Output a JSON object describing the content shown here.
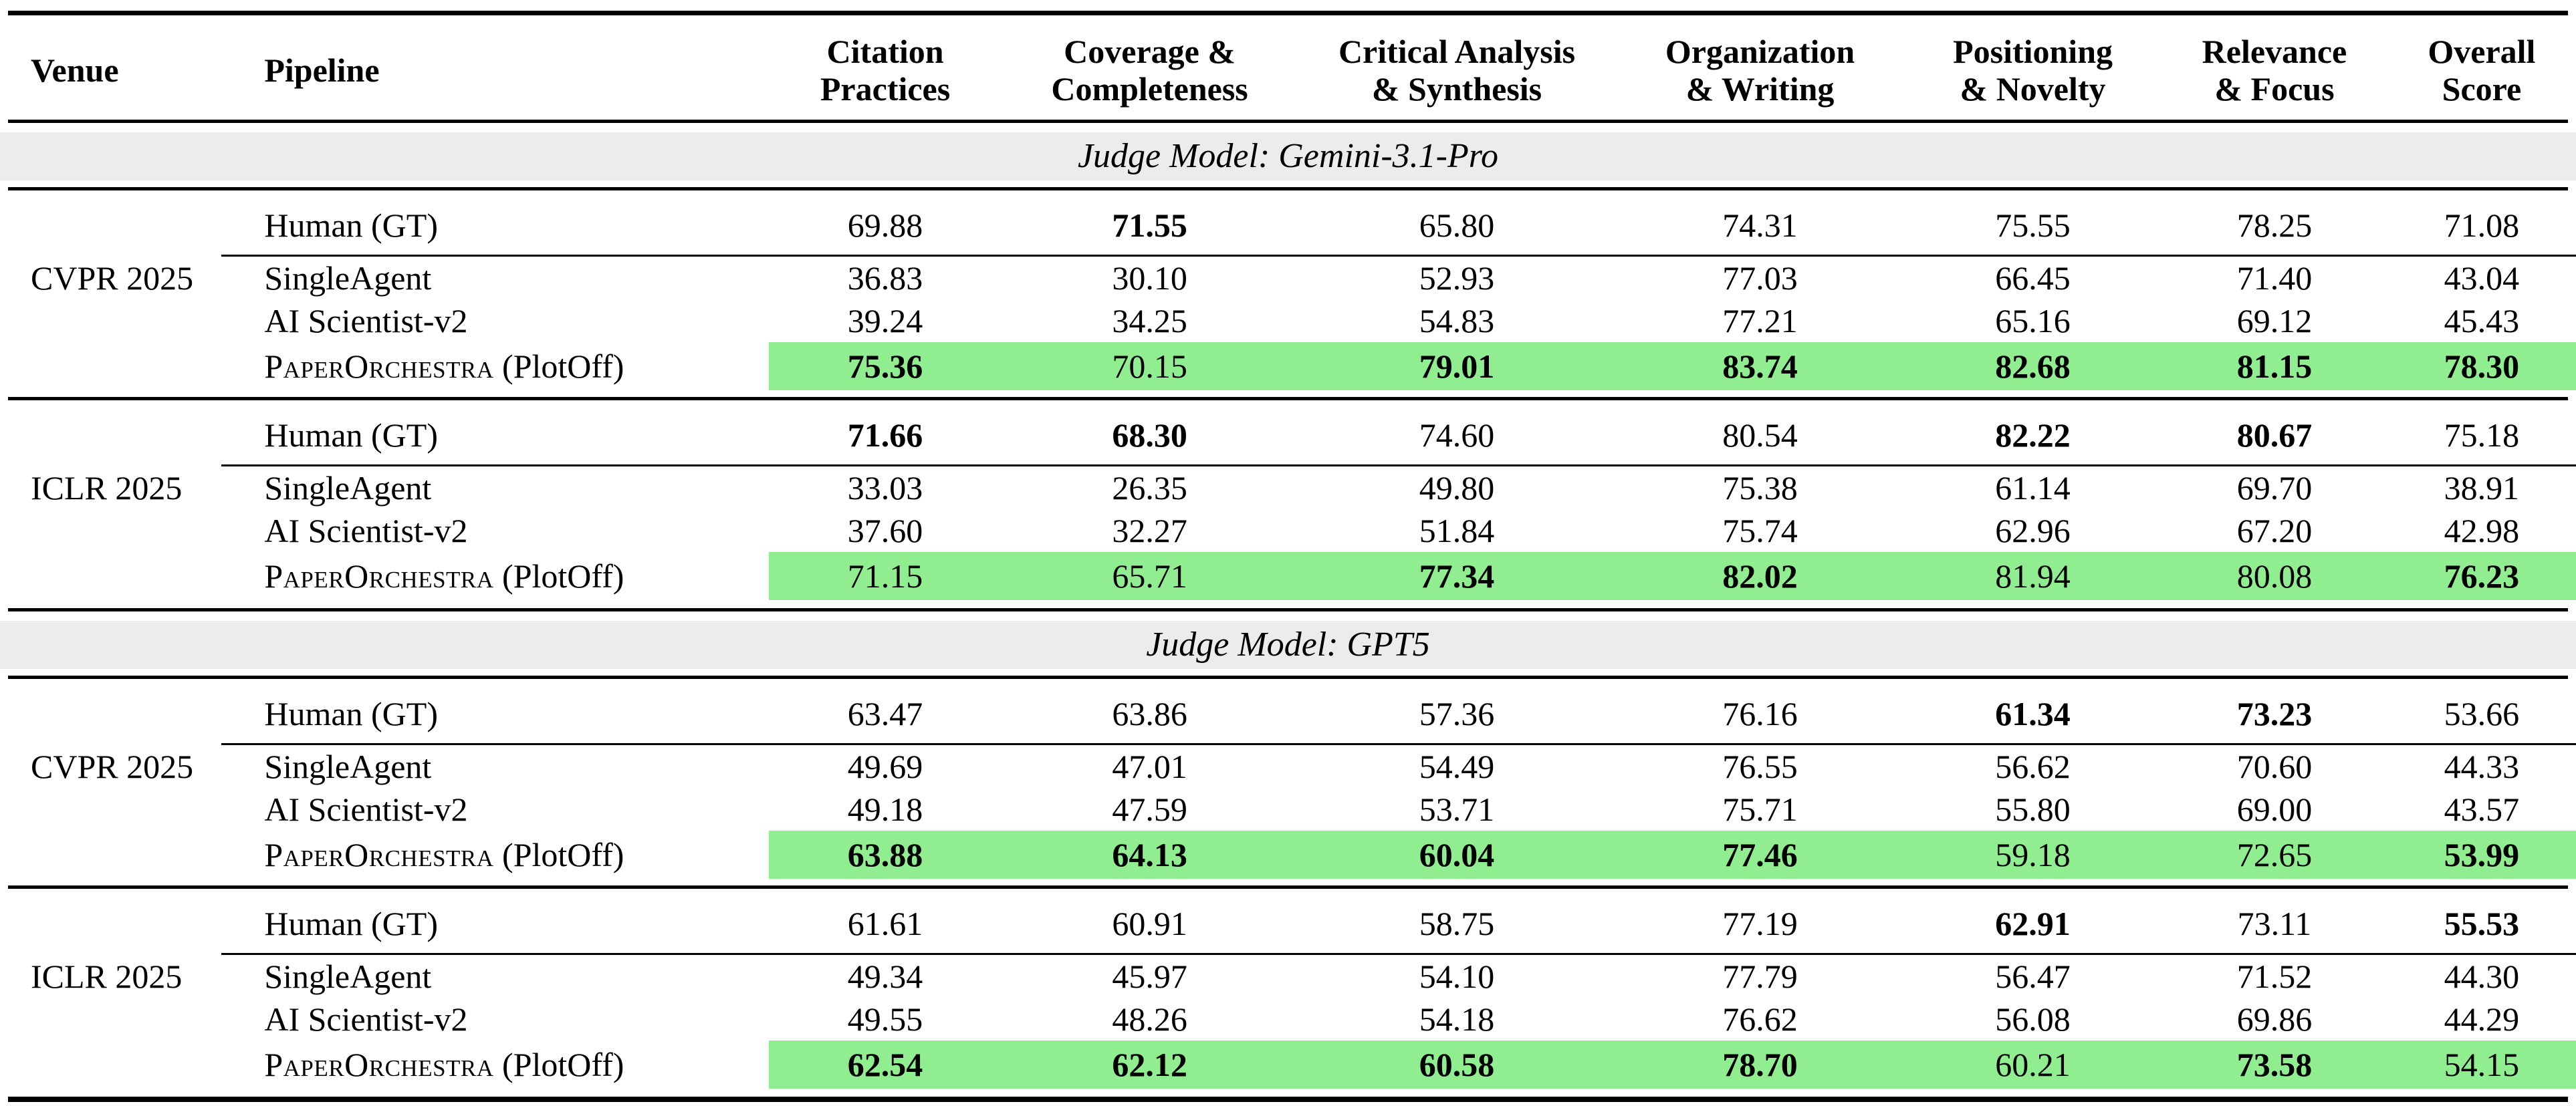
{
  "table": {
    "highlight_color": "#90EE90",
    "band_color": "#ECECEC",
    "columns": [
      {
        "label": "Venue"
      },
      {
        "label": "Pipeline"
      },
      {
        "line1": "Citation",
        "line2": "Practices"
      },
      {
        "line1": "Coverage &",
        "line2": "Completeness"
      },
      {
        "line1": "Critical Analysis",
        "line2": "& Synthesis"
      },
      {
        "line1": "Organization",
        "line2": "& Writing"
      },
      {
        "line1": "Positioning",
        "line2": "& Novelty"
      },
      {
        "line1": "Relevance",
        "line2": "& Focus"
      },
      {
        "line1": "Overall",
        "line2": "Score"
      }
    ],
    "sections": [
      {
        "judge_label": "Judge Model: Gemini-3.1-Pro",
        "blocks": [
          {
            "venue": "CVPR 2025",
            "rows": [
              {
                "pipeline": "Human (GT)",
                "pipeline_suffix": "",
                "smallcaps": false,
                "highlight": false,
                "values": [
                  "69.88",
                  "71.55",
                  "65.80",
                  "74.31",
                  "75.55",
                  "78.25",
                  "71.08"
                ],
                "bold": [
                  false,
                  true,
                  false,
                  false,
                  false,
                  false,
                  false
                ]
              },
              {
                "pipeline": "SingleAgent",
                "pipeline_suffix": "",
                "smallcaps": false,
                "highlight": false,
                "values": [
                  "36.83",
                  "30.10",
                  "52.93",
                  "77.03",
                  "66.45",
                  "71.40",
                  "43.04"
                ],
                "bold": [
                  false,
                  false,
                  false,
                  false,
                  false,
                  false,
                  false
                ]
              },
              {
                "pipeline": "AI Scientist-v2",
                "pipeline_suffix": "",
                "smallcaps": false,
                "highlight": false,
                "values": [
                  "39.24",
                  "34.25",
                  "54.83",
                  "77.21",
                  "65.16",
                  "69.12",
                  "45.43"
                ],
                "bold": [
                  false,
                  false,
                  false,
                  false,
                  false,
                  false,
                  false
                ]
              },
              {
                "pipeline": "PaperOrchestra",
                "pipeline_suffix": " (PlotOff)",
                "smallcaps": true,
                "highlight": true,
                "values": [
                  "75.36",
                  "70.15",
                  "79.01",
                  "83.74",
                  "82.68",
                  "81.15",
                  "78.30"
                ],
                "bold": [
                  true,
                  false,
                  true,
                  true,
                  true,
                  true,
                  true
                ]
              }
            ]
          },
          {
            "venue": "ICLR 2025",
            "rows": [
              {
                "pipeline": "Human (GT)",
                "pipeline_suffix": "",
                "smallcaps": false,
                "highlight": false,
                "values": [
                  "71.66",
                  "68.30",
                  "74.60",
                  "80.54",
                  "82.22",
                  "80.67",
                  "75.18"
                ],
                "bold": [
                  true,
                  true,
                  false,
                  false,
                  true,
                  true,
                  false
                ]
              },
              {
                "pipeline": "SingleAgent",
                "pipeline_suffix": "",
                "smallcaps": false,
                "highlight": false,
                "values": [
                  "33.03",
                  "26.35",
                  "49.80",
                  "75.38",
                  "61.14",
                  "69.70",
                  "38.91"
                ],
                "bold": [
                  false,
                  false,
                  false,
                  false,
                  false,
                  false,
                  false
                ]
              },
              {
                "pipeline": "AI Scientist-v2",
                "pipeline_suffix": "",
                "smallcaps": false,
                "highlight": false,
                "values": [
                  "37.60",
                  "32.27",
                  "51.84",
                  "75.74",
                  "62.96",
                  "67.20",
                  "42.98"
                ],
                "bold": [
                  false,
                  false,
                  false,
                  false,
                  false,
                  false,
                  false
                ]
              },
              {
                "pipeline": "PaperOrchestra",
                "pipeline_suffix": " (PlotOff)",
                "smallcaps": true,
                "highlight": true,
                "values": [
                  "71.15",
                  "65.71",
                  "77.34",
                  "82.02",
                  "81.94",
                  "80.08",
                  "76.23"
                ],
                "bold": [
                  false,
                  false,
                  true,
                  true,
                  false,
                  false,
                  true
                ]
              }
            ]
          }
        ]
      },
      {
        "judge_label": "Judge Model: GPT5",
        "blocks": [
          {
            "venue": "CVPR 2025",
            "rows": [
              {
                "pipeline": "Human (GT)",
                "pipeline_suffix": "",
                "smallcaps": false,
                "highlight": false,
                "values": [
                  "63.47",
                  "63.86",
                  "57.36",
                  "76.16",
                  "61.34",
                  "73.23",
                  "53.66"
                ],
                "bold": [
                  false,
                  false,
                  false,
                  false,
                  true,
                  true,
                  false
                ]
              },
              {
                "pipeline": "SingleAgent",
                "pipeline_suffix": "",
                "smallcaps": false,
                "highlight": false,
                "values": [
                  "49.69",
                  "47.01",
                  "54.49",
                  "76.55",
                  "56.62",
                  "70.60",
                  "44.33"
                ],
                "bold": [
                  false,
                  false,
                  false,
                  false,
                  false,
                  false,
                  false
                ]
              },
              {
                "pipeline": "AI Scientist-v2",
                "pipeline_suffix": "",
                "smallcaps": false,
                "highlight": false,
                "values": [
                  "49.18",
                  "47.59",
                  "53.71",
                  "75.71",
                  "55.80",
                  "69.00",
                  "43.57"
                ],
                "bold": [
                  false,
                  false,
                  false,
                  false,
                  false,
                  false,
                  false
                ]
              },
              {
                "pipeline": "PaperOrchestra",
                "pipeline_suffix": " (PlotOff)",
                "smallcaps": true,
                "highlight": true,
                "values": [
                  "63.88",
                  "64.13",
                  "60.04",
                  "77.46",
                  "59.18",
                  "72.65",
                  "53.99"
                ],
                "bold": [
                  true,
                  true,
                  true,
                  true,
                  false,
                  false,
                  true
                ]
              }
            ]
          },
          {
            "venue": "ICLR 2025",
            "rows": [
              {
                "pipeline": "Human (GT)",
                "pipeline_suffix": "",
                "smallcaps": false,
                "highlight": false,
                "values": [
                  "61.61",
                  "60.91",
                  "58.75",
                  "77.19",
                  "62.91",
                  "73.11",
                  "55.53"
                ],
                "bold": [
                  false,
                  false,
                  false,
                  false,
                  true,
                  false,
                  true
                ]
              },
              {
                "pipeline": "SingleAgent",
                "pipeline_suffix": "",
                "smallcaps": false,
                "highlight": false,
                "values": [
                  "49.34",
                  "45.97",
                  "54.10",
                  "77.79",
                  "56.47",
                  "71.52",
                  "44.30"
                ],
                "bold": [
                  false,
                  false,
                  false,
                  false,
                  false,
                  false,
                  false
                ]
              },
              {
                "pipeline": "AI Scientist-v2",
                "pipeline_suffix": "",
                "smallcaps": false,
                "highlight": false,
                "values": [
                  "49.55",
                  "48.26",
                  "54.18",
                  "76.62",
                  "56.08",
                  "69.86",
                  "44.29"
                ],
                "bold": [
                  false,
                  false,
                  false,
                  false,
                  false,
                  false,
                  false
                ]
              },
              {
                "pipeline": "PaperOrchestra",
                "pipeline_suffix": " (PlotOff)",
                "smallcaps": true,
                "highlight": true,
                "values": [
                  "62.54",
                  "62.12",
                  "60.58",
                  "78.70",
                  "60.21",
                  "73.58",
                  "54.15"
                ],
                "bold": [
                  true,
                  true,
                  true,
                  true,
                  false,
                  true,
                  false
                ]
              }
            ]
          }
        ]
      }
    ]
  }
}
